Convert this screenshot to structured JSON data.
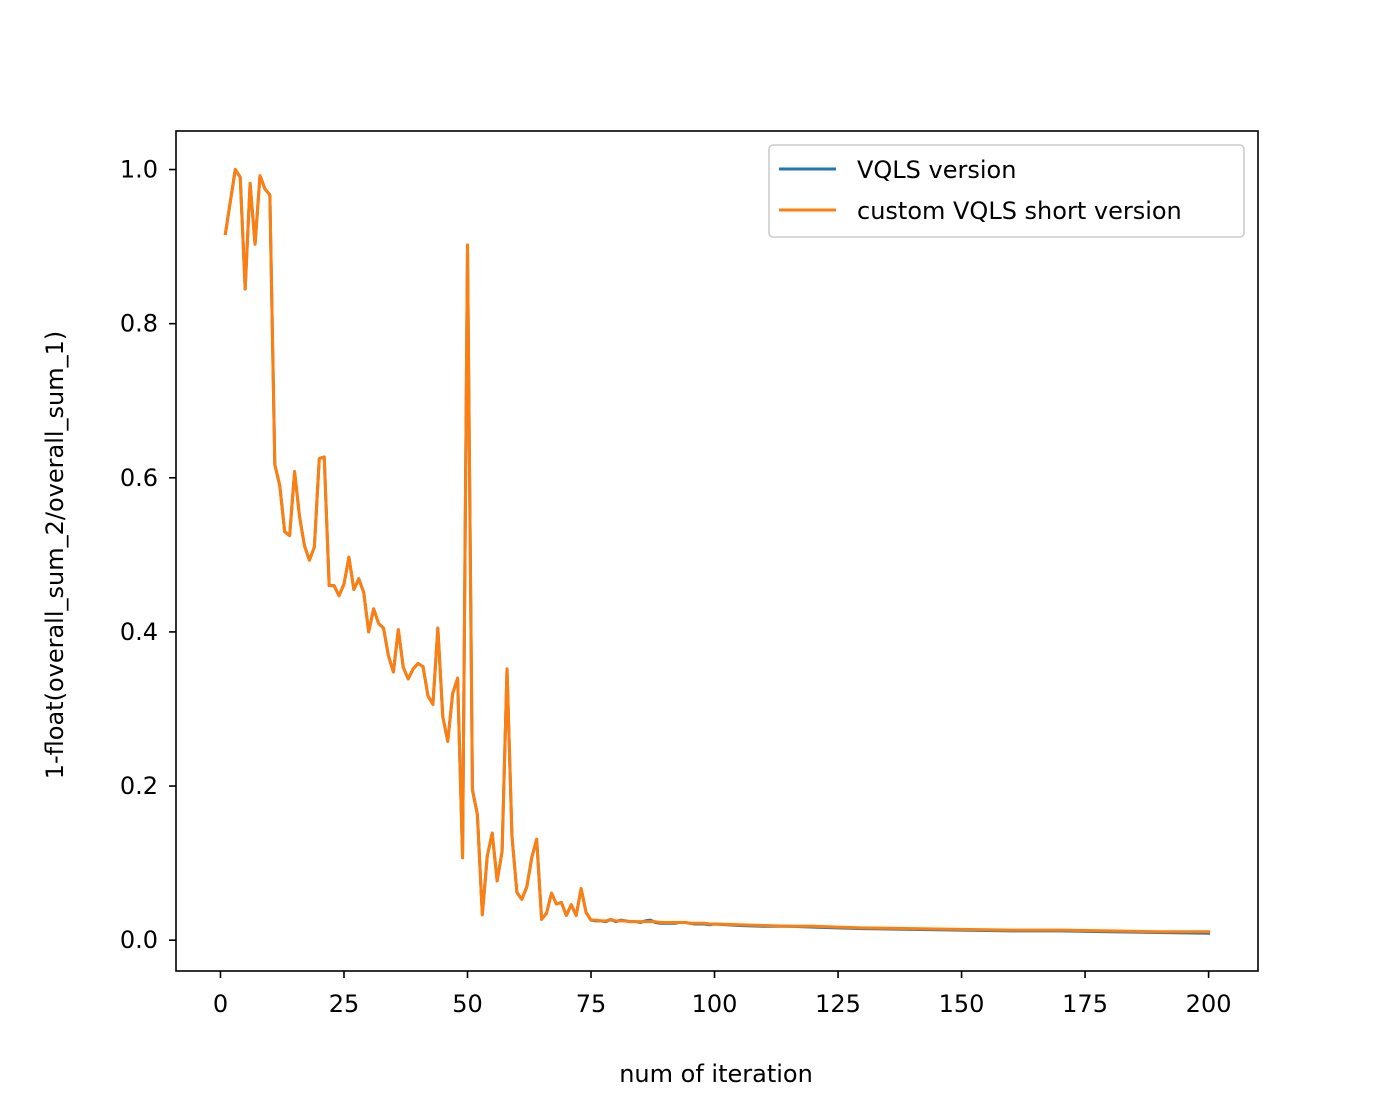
{
  "chart_data": {
    "type": "line",
    "title": "",
    "xlabel": "num of iteration",
    "ylabel": "1-float(overall_sum_2/overall_sum_1)",
    "xlim": [
      -9,
      210
    ],
    "ylim": [
      -0.04,
      1.05
    ],
    "x_ticks": [
      0,
      25,
      50,
      75,
      100,
      125,
      150,
      175,
      200
    ],
    "x_tick_labels": [
      "0",
      "25",
      "50",
      "75",
      "100",
      "125",
      "150",
      "175",
      "200"
    ],
    "y_ticks": [
      0.0,
      0.2,
      0.4,
      0.6,
      0.8,
      1.0
    ],
    "y_tick_labels": [
      "0.0",
      "0.2",
      "0.4",
      "0.6",
      "0.8",
      "1.0"
    ],
    "grid": false,
    "legend_position": "top-right",
    "series": [
      {
        "name": "VQLS version",
        "color": "#1f77b4",
        "x": [
          1,
          3,
          4,
          5,
          6,
          7,
          8,
          9,
          10,
          11,
          12,
          13,
          14,
          15,
          16,
          17,
          18,
          19,
          20,
          21,
          22,
          23,
          24,
          25,
          26,
          27,
          28,
          29,
          30,
          31,
          32,
          33,
          34,
          35,
          36,
          37,
          38,
          39,
          40,
          41,
          42,
          43,
          44,
          45,
          46,
          47,
          48,
          49,
          50,
          51,
          52,
          53,
          54,
          55,
          56,
          57,
          58,
          59,
          60,
          61,
          62,
          63,
          64,
          65,
          66,
          67,
          68,
          69,
          70,
          71,
          72,
          73,
          74,
          75,
          76,
          77,
          78,
          79,
          80,
          81,
          82,
          83,
          84,
          85,
          86,
          87,
          88,
          89,
          90,
          91,
          92,
          93,
          94,
          95,
          96,
          97,
          98,
          99,
          100,
          105,
          110,
          115,
          120,
          125,
          130,
          140,
          150,
          160,
          170,
          180,
          190,
          200
        ],
        "values": [
          0.917,
          1.0,
          0.99,
          0.845,
          0.982,
          0.903,
          0.992,
          0.975,
          0.967,
          0.617,
          0.59,
          0.53,
          0.525,
          0.608,
          0.55,
          0.512,
          0.493,
          0.51,
          0.625,
          0.627,
          0.46,
          0.46,
          0.447,
          0.462,
          0.497,
          0.455,
          0.469,
          0.451,
          0.4,
          0.43,
          0.411,
          0.405,
          0.369,
          0.348,
          0.403,
          0.354,
          0.339,
          0.352,
          0.359,
          0.355,
          0.317,
          0.306,
          0.405,
          0.29,
          0.258,
          0.32,
          0.34,
          0.107,
          0.902,
          0.195,
          0.163,
          0.033,
          0.109,
          0.139,
          0.077,
          0.115,
          0.352,
          0.135,
          0.062,
          0.053,
          0.069,
          0.107,
          0.131,
          0.027,
          0.035,
          0.061,
          0.047,
          0.049,
          0.032,
          0.046,
          0.032,
          0.067,
          0.036,
          0.026,
          0.025,
          0.025,
          0.024,
          0.027,
          0.024,
          0.026,
          0.025,
          0.024,
          0.024,
          0.023,
          0.025,
          0.026,
          0.023,
          0.022,
          0.022,
          0.022,
          0.022,
          0.023,
          0.023,
          0.022,
          0.021,
          0.021,
          0.021,
          0.02,
          0.021,
          0.019,
          0.018,
          0.018,
          0.017,
          0.016,
          0.015,
          0.014,
          0.013,
          0.012,
          0.012,
          0.011,
          0.01,
          0.009
        ]
      },
      {
        "name": "custom VQLS short version",
        "color": "#ff7f0e",
        "x": [
          1,
          3,
          4,
          5,
          6,
          7,
          8,
          9,
          10,
          11,
          12,
          13,
          14,
          15,
          16,
          17,
          18,
          19,
          20,
          21,
          22,
          23,
          24,
          25,
          26,
          27,
          28,
          29,
          30,
          31,
          32,
          33,
          34,
          35,
          36,
          37,
          38,
          39,
          40,
          41,
          42,
          43,
          44,
          45,
          46,
          47,
          48,
          49,
          50,
          51,
          52,
          53,
          54,
          55,
          56,
          57,
          58,
          59,
          60,
          61,
          62,
          63,
          64,
          65,
          66,
          67,
          68,
          69,
          70,
          71,
          72,
          73,
          74,
          75,
          76,
          77,
          78,
          79,
          80,
          81,
          82,
          83,
          84,
          85,
          86,
          87,
          88,
          89,
          90,
          91,
          92,
          93,
          94,
          95,
          96,
          97,
          98,
          99,
          100,
          105,
          110,
          115,
          120,
          125,
          130,
          140,
          150,
          160,
          170,
          180,
          190,
          200
        ],
        "values": [
          0.917,
          1.0,
          0.99,
          0.845,
          0.982,
          0.903,
          0.992,
          0.975,
          0.967,
          0.617,
          0.59,
          0.53,
          0.525,
          0.608,
          0.55,
          0.512,
          0.493,
          0.51,
          0.625,
          0.627,
          0.46,
          0.46,
          0.447,
          0.462,
          0.497,
          0.455,
          0.469,
          0.451,
          0.4,
          0.43,
          0.411,
          0.405,
          0.369,
          0.348,
          0.403,
          0.354,
          0.339,
          0.352,
          0.359,
          0.355,
          0.317,
          0.306,
          0.405,
          0.29,
          0.258,
          0.32,
          0.34,
          0.107,
          0.902,
          0.195,
          0.163,
          0.033,
          0.109,
          0.139,
          0.077,
          0.115,
          0.352,
          0.135,
          0.062,
          0.053,
          0.069,
          0.107,
          0.131,
          0.027,
          0.035,
          0.061,
          0.047,
          0.049,
          0.032,
          0.046,
          0.032,
          0.067,
          0.036,
          0.026,
          0.026,
          0.025,
          0.025,
          0.027,
          0.025,
          0.025,
          0.025,
          0.024,
          0.024,
          0.024,
          0.024,
          0.024,
          0.024,
          0.023,
          0.023,
          0.023,
          0.023,
          0.023,
          0.023,
          0.022,
          0.022,
          0.022,
          0.022,
          0.021,
          0.021,
          0.02,
          0.019,
          0.018,
          0.018,
          0.017,
          0.016,
          0.015,
          0.014,
          0.013,
          0.013,
          0.012,
          0.011,
          0.011
        ]
      }
    ]
  }
}
